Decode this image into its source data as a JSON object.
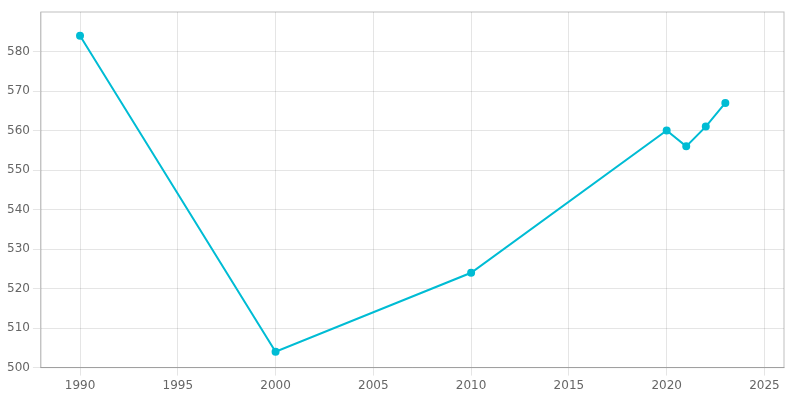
{
  "chart_data": {
    "type": "line",
    "x": [
      1990,
      2000,
      2010,
      2020,
      2021,
      2022,
      2023
    ],
    "values": [
      584,
      504,
      524,
      560,
      556,
      561,
      567
    ],
    "color": "#00BCD4",
    "marker": "circle",
    "xlim": [
      1988,
      2026
    ],
    "ylim": [
      500,
      590
    ],
    "xticks": [
      1990,
      1995,
      2000,
      2005,
      2010,
      2015,
      2020,
      2025
    ],
    "yticks": [
      500,
      510,
      520,
      530,
      540,
      550,
      560,
      570,
      580
    ],
    "grid": true
  }
}
